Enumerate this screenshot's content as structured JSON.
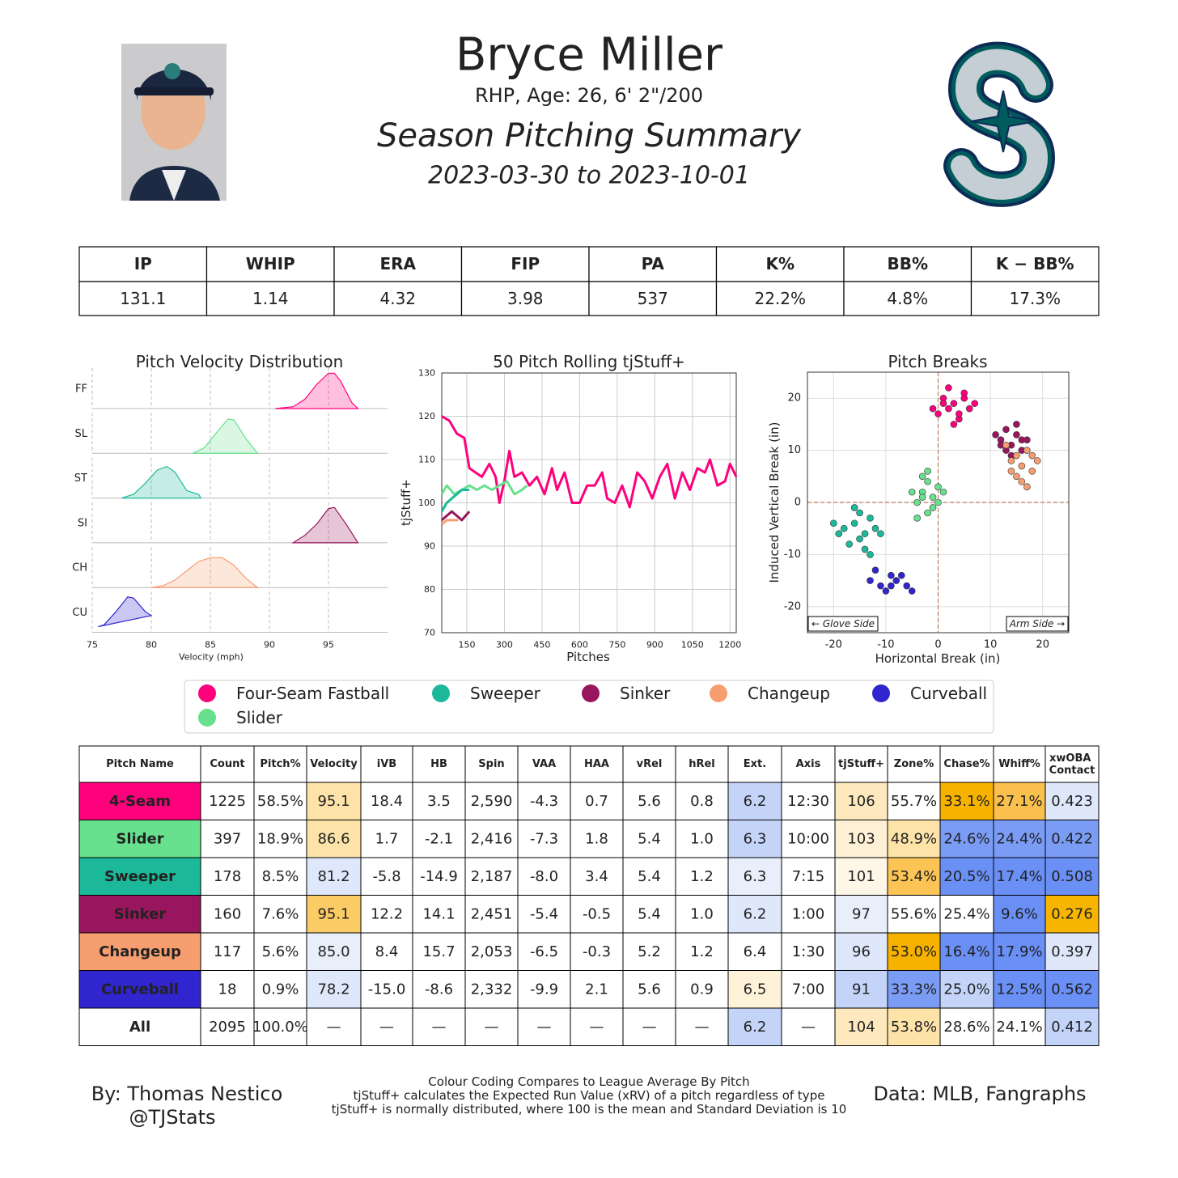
{
  "header": {
    "name": "Bryce Miller",
    "bio": "RHP, Age: 26, 6' 2\"/200",
    "title": "Season Pitching Summary",
    "dates": "2023-03-30 to 2023-10-01"
  },
  "stats": {
    "columns": [
      "IP",
      "WHIP",
      "ERA",
      "FIP",
      "PA",
      "K%",
      "BB%",
      "K − BB%"
    ],
    "values": [
      "131.1",
      "1.14",
      "4.32",
      "3.98",
      "537",
      "22.2%",
      "4.8%",
      "17.3%"
    ]
  },
  "chart_data": [
    {
      "type": "ridgeline",
      "title": "Pitch Velocity Distribution",
      "xlabel": "Velocity (mph)",
      "xlim": [
        75,
        100
      ],
      "xticks": [
        75,
        80,
        85,
        90,
        95
      ],
      "ylim": [
        0,
        1
      ],
      "series": [
        {
          "name": "FF",
          "color": "#ff007d",
          "x": [
            90.5,
            92,
            93,
            94,
            95,
            95.5,
            96,
            97,
            97.5
          ],
          "values": [
            0,
            0.05,
            0.25,
            0.65,
            0.95,
            0.95,
            0.75,
            0.15,
            0
          ]
        },
        {
          "name": "SL",
          "color": "#67e18d",
          "x": [
            83.5,
            84.5,
            85.5,
            86.5,
            87,
            88,
            89
          ],
          "values": [
            0,
            0.15,
            0.55,
            0.92,
            0.9,
            0.4,
            0
          ]
        },
        {
          "name": "ST",
          "color": "#1bb999",
          "x": [
            77.5,
            78.5,
            79.5,
            80.5,
            81.3,
            82,
            83,
            84,
            84.2
          ],
          "values": [
            0,
            0.1,
            0.4,
            0.75,
            0.85,
            0.7,
            0.2,
            0.1,
            0
          ]
        },
        {
          "name": "SI",
          "color": "#98165d",
          "x": [
            92,
            93,
            94,
            95,
            95.5,
            96.5,
            97.5
          ],
          "values": [
            0,
            0.2,
            0.5,
            0.92,
            0.95,
            0.5,
            0
          ]
        },
        {
          "name": "CH",
          "color": "#f79e70",
          "x": [
            80,
            81,
            82,
            83,
            84,
            85,
            86,
            87,
            88,
            89
          ],
          "values": [
            0,
            0.05,
            0.2,
            0.45,
            0.7,
            0.8,
            0.8,
            0.6,
            0.25,
            0
          ]
        },
        {
          "name": "CU",
          "color": "#3025ce",
          "x": [
            75.5,
            76,
            77,
            78,
            78.5,
            79.5,
            80
          ],
          "values": [
            0.15,
            0.2,
            0.55,
            0.95,
            0.92,
            0.55,
            0.45
          ]
        }
      ]
    },
    {
      "type": "line",
      "title": "50 Pitch Rolling tjStuff+",
      "xlabel": "Pitches",
      "ylabel": "tjStuff+",
      "xlim": [
        50,
        1225
      ],
      "xticks": [
        150,
        300,
        450,
        600,
        750,
        900,
        1050,
        1200
      ],
      "ylim": [
        70,
        130
      ],
      "yticks": [
        70,
        80,
        90,
        100,
        110,
        120,
        130
      ],
      "grid": true,
      "series": [
        {
          "name": "Four-Seam Fastball",
          "color": "#ff007d",
          "x": [
            50,
            80,
            110,
            140,
            160,
            185,
            210,
            240,
            265,
            280,
            300,
            320,
            340,
            370,
            400,
            430,
            460,
            490,
            510,
            540,
            570,
            600,
            630,
            660,
            690,
            710,
            740,
            770,
            800,
            830,
            860,
            890,
            920,
            950,
            980,
            1010,
            1040,
            1070,
            1100,
            1120,
            1150,
            1180,
            1200,
            1225
          ],
          "values": [
            120,
            119,
            116,
            115,
            108,
            107,
            106,
            109,
            106,
            100,
            105,
            112,
            106,
            107,
            104,
            106,
            102,
            108,
            103,
            107,
            100,
            100,
            104,
            104,
            107,
            101,
            100,
            104,
            99,
            107,
            105,
            101,
            106,
            109,
            101,
            107,
            103,
            108,
            107,
            110,
            104,
            105,
            109,
            106
          ]
        },
        {
          "name": "Slider",
          "color": "#67e18d",
          "x": [
            50,
            70,
            100,
            130,
            160,
            190,
            220,
            250,
            280,
            310,
            340,
            370,
            390
          ],
          "values": [
            102,
            104,
            102,
            103,
            104,
            103,
            104,
            103,
            104,
            105,
            102,
            103,
            104
          ]
        },
        {
          "name": "Sweeper",
          "color": "#1bb999",
          "x": [
            50,
            70,
            90,
            110,
            130,
            160
          ],
          "values": [
            98,
            100,
            101,
            102,
            103,
            103
          ]
        },
        {
          "name": "Sinker",
          "color": "#98165d",
          "x": [
            50,
            70,
            90,
            110,
            130,
            160
          ],
          "values": [
            96,
            97,
            98,
            97,
            96,
            98
          ]
        },
        {
          "name": "Changeup",
          "color": "#f79e70",
          "x": [
            50,
            70,
            90,
            115
          ],
          "values": [
            95,
            96,
            96,
            96
          ]
        }
      ]
    },
    {
      "type": "scatter",
      "title": "Pitch Breaks",
      "xlabel": "Horizontal Break (in)",
      "ylabel": "Induced Vertical Break (in)",
      "xlim": [
        -25,
        25
      ],
      "xticks": [
        -20,
        -10,
        0,
        10,
        20
      ],
      "ylim": [
        -25,
        25
      ],
      "yticks": [
        -20,
        -10,
        0,
        10,
        20
      ],
      "grid": true,
      "annotations": [
        "← Glove Side",
        "Arm Side →"
      ],
      "series": [
        {
          "name": "Four-Seam Fastball",
          "color": "#ff007d",
          "x": [
            0,
            1,
            2,
            3,
            4,
            5,
            6,
            -1,
            2,
            4,
            7,
            3,
            1,
            5
          ],
          "values": [
            17,
            20,
            18,
            19,
            16,
            21,
            18,
            18,
            22,
            17,
            19,
            15,
            19,
            20
          ]
        },
        {
          "name": "Sweeper",
          "color": "#1bb999",
          "x": [
            -18,
            -16,
            -15,
            -14,
            -13,
            -17,
            -12,
            -15,
            -19,
            -14,
            -11,
            -16,
            -13,
            -20
          ],
          "values": [
            -5,
            -4,
            -7,
            -6,
            -3,
            -8,
            -5,
            -2,
            -6,
            -9,
            -6,
            -1,
            -10,
            -4
          ]
        },
        {
          "name": "Sinker",
          "color": "#98165d",
          "x": [
            12,
            13,
            14,
            15,
            16,
            13,
            15,
            11,
            14,
            17,
            12,
            16
          ],
          "values": [
            12,
            14,
            11,
            13,
            12,
            10,
            15,
            13,
            9,
            12,
            11,
            10
          ]
        },
        {
          "name": "Changeup",
          "color": "#f79e70",
          "x": [
            14,
            15,
            16,
            17,
            18,
            15,
            13,
            16,
            19,
            14,
            17,
            18
          ],
          "values": [
            8,
            9,
            7,
            10,
            6,
            5,
            11,
            4,
            8,
            6,
            3,
            9
          ]
        },
        {
          "name": "Curveball",
          "color": "#3025ce",
          "x": [
            -13,
            -11,
            -9,
            -8,
            -6,
            -10,
            -7,
            -5,
            -12,
            -9
          ],
          "values": [
            -15,
            -16,
            -14,
            -15,
            -16,
            -17,
            -14,
            -17,
            -13,
            -16
          ]
        },
        {
          "name": "Slider",
          "color": "#67e18d",
          "x": [
            -4,
            -3,
            -2,
            -1,
            0,
            -2,
            -5,
            -3,
            -1,
            1,
            -2,
            -4,
            0,
            -3
          ],
          "values": [
            0,
            2,
            4,
            1,
            3,
            -2,
            2,
            5,
            -1,
            2,
            6,
            -3,
            0,
            1
          ]
        }
      ]
    }
  ],
  "pitch_table": {
    "columns": [
      "Pitch Name",
      "Count",
      "Pitch%",
      "Velocity",
      "iVB",
      "HB",
      "Spin",
      "VAA",
      "HAA",
      "vRel",
      "hRel",
      "Ext.",
      "Axis",
      "tjStuff+",
      "Zone%",
      "Chase%",
      "Whiff%",
      "xwOBA Contact"
    ],
    "rows": [
      {
        "cells": [
          "4-Seam",
          "1225",
          "58.5%",
          "95.1",
          "18.4",
          "3.5",
          "2,590",
          "-4.3",
          "0.7",
          "5.6",
          "0.8",
          "6.2",
          "12:30",
          "106",
          "55.7%",
          "33.1%",
          "27.1%",
          "0.423"
        ],
        "colors": [
          "#ff007d",
          null,
          null,
          "#fde3a8",
          null,
          null,
          null,
          null,
          null,
          null,
          null,
          "#c4d4f8",
          null,
          "#fde9bd",
          null,
          "#f7b200",
          "#f9c04d",
          "#dfe7fb"
        ]
      },
      {
        "cells": [
          "Slider",
          "397",
          "18.9%",
          "86.6",
          "1.7",
          "-2.1",
          "2,416",
          "-7.3",
          "1.8",
          "5.4",
          "1.0",
          "6.3",
          "10:00",
          "103",
          "48.9%",
          "24.6%",
          "24.4%",
          "0.422"
        ],
        "colors": [
          "#67e18d",
          null,
          null,
          "#fde3a8",
          null,
          null,
          null,
          null,
          null,
          null,
          null,
          "#c4d4f8",
          null,
          "#fdf0d5",
          "#fde3a8",
          "#7a9cf5",
          "#7a9cf5",
          "#7a9cf5"
        ]
      },
      {
        "cells": [
          "Sweeper",
          "178",
          "8.5%",
          "81.2",
          "-5.8",
          "-14.9",
          "2,187",
          "-8.0",
          "3.4",
          "5.4",
          "1.2",
          "6.3",
          "7:15",
          "101",
          "53.4%",
          "20.5%",
          "17.4%",
          "0.508"
        ],
        "colors": [
          "#1bb999",
          null,
          null,
          "#dfe7fb",
          null,
          null,
          null,
          null,
          null,
          null,
          null,
          "#e9eefb",
          null,
          "#fef6e6",
          "#fbc455",
          "#6a8ff5",
          "#6a8ff5",
          "#6a8ff5"
        ]
      },
      {
        "cells": [
          "Sinker",
          "160",
          "7.6%",
          "95.1",
          "12.2",
          "14.1",
          "2,451",
          "-5.4",
          "-0.5",
          "5.4",
          "1.0",
          "6.2",
          "1:00",
          "97",
          "55.6%",
          "25.4%",
          "9.6%",
          "0.276"
        ],
        "colors": [
          "#98165d",
          null,
          null,
          "#fbcb66",
          null,
          null,
          null,
          null,
          null,
          null,
          null,
          "#dfe7fb",
          null,
          "#e9eefb",
          null,
          null,
          "#6a8ff5",
          "#f7b500"
        ]
      },
      {
        "cells": [
          "Changeup",
          "117",
          "5.6%",
          "85.0",
          "8.4",
          "15.7",
          "2,053",
          "-6.5",
          "-0.3",
          "5.2",
          "1.2",
          "6.4",
          "1:30",
          "96",
          "53.0%",
          "16.4%",
          "17.9%",
          "0.397"
        ],
        "colors": [
          "#f79e70",
          null,
          null,
          "#e9eefb",
          null,
          null,
          null,
          null,
          null,
          null,
          null,
          null,
          null,
          "#dfe7fb",
          "#f7b200",
          "#6a8ff5",
          "#6a8ff5",
          "#dfe7fb"
        ]
      },
      {
        "cells": [
          "Curveball",
          "18",
          "0.9%",
          "78.2",
          "-15.0",
          "-8.6",
          "2,332",
          "-9.9",
          "2.1",
          "5.6",
          "0.9",
          "6.5",
          "7:00",
          "91",
          "33.3%",
          "25.0%",
          "12.5%",
          "0.562"
        ],
        "colors": [
          "#3025ce",
          null,
          null,
          "#dfe7fb",
          null,
          null,
          null,
          null,
          null,
          null,
          null,
          "#fef3d8",
          null,
          "#c4d4f8",
          "#7a9cf5",
          "#c4d4f8",
          "#6a8ff5",
          "#6a8ff5"
        ]
      },
      {
        "cells": [
          "All",
          "2095",
          "100.0%",
          "—",
          "—",
          "—",
          "—",
          "—",
          "—",
          "—",
          "—",
          "6.2",
          "—",
          "104",
          "53.8%",
          "28.6%",
          "24.1%",
          "0.412"
        ],
        "colors": [
          null,
          null,
          null,
          null,
          null,
          null,
          null,
          null,
          null,
          null,
          null,
          "#c4d4f8",
          null,
          "#fde9bd",
          "#fde3a8",
          null,
          null,
          "#c4d4f8"
        ]
      }
    ]
  },
  "footer": {
    "author": "By: Thomas Nestico",
    "handle": "@TJStats",
    "notes": [
      "Colour Coding Compares to League Average By Pitch",
      "tjStuff+ calculates the Expected Run Value (xRV) of a pitch regardless of type",
      "tjStuff+ is normally distributed, where 100 is the mean and Standard Deviation is 10"
    ],
    "source": "Data: MLB, Fangraphs"
  }
}
